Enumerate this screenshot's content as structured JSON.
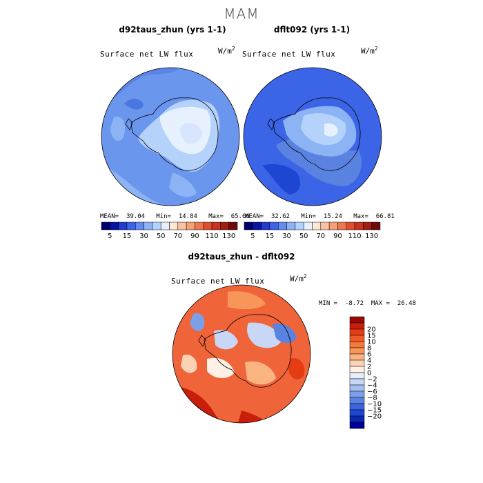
{
  "season": "MAM",
  "panels": [
    {
      "title": "d92taus_zhun (yrs 1-1)",
      "label": "Surface net LW flux",
      "units": "W/m",
      "units_sup": "2",
      "mean_label": "MEAN=",
      "mean": "39.04",
      "min_label": "Min=",
      "min": "14.84",
      "max_label": "Max=",
      "max": "65.66"
    },
    {
      "title": "dflt092 (yrs 1-1)",
      "label": "Surface net LW flux",
      "units": "W/m",
      "units_sup": "2",
      "mean_label": "MEAN=",
      "mean": "32.62",
      "min_label": "Min=",
      "min": "15.24",
      "max_label": "Max=",
      "max": "66.81"
    },
    {
      "title": "d92taus_zhun - dflt092",
      "label": "Surface net LW flux",
      "units": "W/m",
      "units_sup": "2",
      "min_label": "MIN =",
      "min": "-8.72",
      "max_label": "MAX =",
      "max": "26.48"
    }
  ],
  "chart_data": [
    {
      "type": "heatmap",
      "title": "d92taus_zhun (yrs 1-1)",
      "field": "Surface net LW flux",
      "units": "W/m2",
      "projection": "south polar stereographic",
      "stats": {
        "mean": 39.04,
        "min": 14.84,
        "max": 65.66
      },
      "colorbar_levels": [
        5,
        15,
        30,
        50,
        70,
        90,
        110,
        130
      ]
    },
    {
      "type": "heatmap",
      "title": "dflt092 (yrs 1-1)",
      "field": "Surface net LW flux",
      "units": "W/m2",
      "projection": "south polar stereographic",
      "stats": {
        "mean": 32.62,
        "min": 15.24,
        "max": 66.81
      },
      "colorbar_levels": [
        5,
        15,
        30,
        50,
        70,
        90,
        110,
        130
      ]
    },
    {
      "type": "heatmap",
      "title": "d92taus_zhun - dflt092",
      "field": "Surface net LW flux",
      "units": "W/m2",
      "projection": "south polar stereographic",
      "stats": {
        "min": -8.72,
        "max": 26.48
      },
      "colorbar_levels": [
        20,
        15,
        10,
        8,
        6,
        4,
        2,
        0,
        -2,
        -4,
        -6,
        -8,
        -10,
        -15,
        -20
      ]
    }
  ],
  "colorbar_top": {
    "labels": [
      "5",
      "15",
      "30",
      "50",
      "70",
      "90",
      "110",
      "130"
    ],
    "colors": [
      "#00006e",
      "#0a14a0",
      "#1e3cd2",
      "#3c64e6",
      "#648cf0",
      "#8cb4f5",
      "#b4d2fa",
      "#e6f0ff",
      "#ffe6d2",
      "#fac3a0",
      "#f5a078",
      "#eb7850",
      "#dc5032",
      "#c8321e",
      "#a01e14",
      "#6e0a0a"
    ]
  },
  "colorbar_diff": {
    "labels": [
      "20",
      "15",
      "10",
      "8",
      "6",
      "4",
      "2",
      "0",
      "-2",
      "-4",
      "-6",
      "-8",
      "-10",
      "-15",
      "-20"
    ],
    "colors": [
      "#960a00",
      "#c81e0a",
      "#e63c14",
      "#f05a28",
      "#f5783c",
      "#f8965a",
      "#fab482",
      "#fcd2b4",
      "#fff0e6",
      "#e6eefc",
      "#c8d7f5",
      "#a5bef0",
      "#7d9fe8",
      "#5a82e1",
      "#3c64dc",
      "#1e46d2",
      "#0a28b4",
      "#000096"
    ]
  }
}
